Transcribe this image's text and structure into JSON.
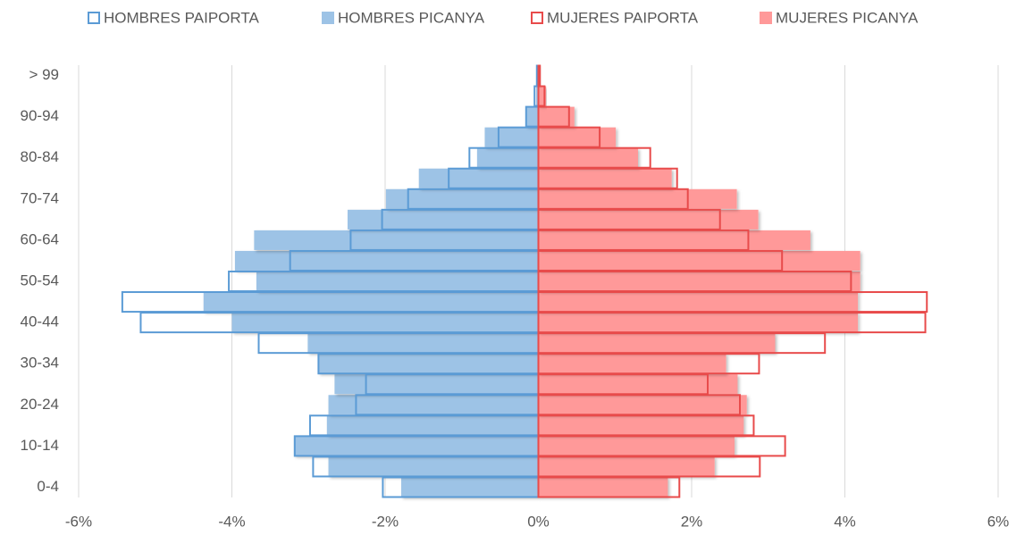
{
  "chart_data": {
    "type": "pyramid",
    "categories": [
      "0-4",
      null,
      "10-14",
      null,
      "20-24",
      null,
      "30-34",
      null,
      "40-44",
      null,
      "50-54",
      null,
      "60-64",
      null,
      "70-74",
      null,
      "80-84",
      null,
      "90-94",
      null,
      "> 99"
    ],
    "series": [
      {
        "name": "HOMBRES PAIPORTA",
        "color": "#5b9bd5",
        "filled": false,
        "values": [
          -2.03,
          -2.94,
          -3.18,
          -2.98,
          -2.38,
          -2.25,
          -2.87,
          -3.65,
          -5.19,
          -5.43,
          -4.04,
          -3.24,
          -2.45,
          -2.04,
          -1.7,
          -1.17,
          -0.9,
          -0.52,
          -0.16,
          -0.05,
          -0.02
        ]
      },
      {
        "name": "HOMBRES PICANYA",
        "color": "#9dc3e6",
        "filled": true,
        "values": [
          -1.79,
          -2.74,
          -3.19,
          -2.76,
          -2.74,
          -2.66,
          -2.87,
          -3.01,
          -4.0,
          -4.37,
          -3.68,
          -3.96,
          -3.71,
          -2.49,
          -1.99,
          -1.56,
          -0.8,
          -0.7,
          -0.16,
          -0.03,
          0
        ]
      },
      {
        "name": "MUJERES PAIPORTA",
        "color": "#e84b4b",
        "filled": false,
        "values": [
          1.84,
          2.89,
          3.22,
          2.81,
          2.63,
          2.21,
          2.88,
          3.74,
          5.05,
          5.07,
          4.08,
          3.18,
          2.74,
          2.37,
          1.95,
          1.81,
          1.46,
          0.8,
          0.4,
          0.08,
          0.02
        ]
      },
      {
        "name": "MUJERES PICANYA",
        "color": "#ff9999",
        "filled": true,
        "values": [
          1.69,
          2.3,
          2.56,
          2.68,
          2.72,
          2.6,
          2.45,
          3.09,
          4.17,
          4.17,
          4.2,
          4.2,
          3.55,
          2.87,
          2.59,
          1.74,
          1.3,
          1.01,
          0.47,
          0.1,
          0.03
        ]
      }
    ],
    "xlim": [
      -6,
      6
    ],
    "xticks": [
      {
        "value": -6,
        "label": "-6%"
      },
      {
        "value": -4,
        "label": "-4%"
      },
      {
        "value": -2,
        "label": "-2%"
      },
      {
        "value": 0,
        "label": "0%"
      },
      {
        "value": 2,
        "label": "2%"
      },
      {
        "value": 4,
        "label": "4%"
      },
      {
        "value": 6,
        "label": "6%"
      }
    ],
    "grid": true,
    "legend": "top"
  }
}
